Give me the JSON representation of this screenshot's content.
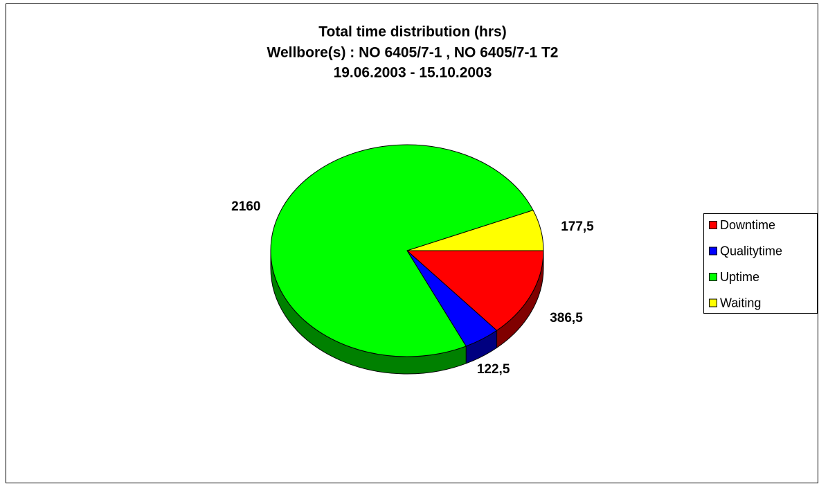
{
  "chart_data": {
    "type": "pie",
    "title": [
      "Total time distribution (hrs)",
      "Wellbore(s) : NO 6405/7-1 , NO 6405/7-1 T2",
      "19.06.2003 - 15.10.2003"
    ],
    "categories": [
      "Downtime",
      "Qualitytime",
      "Uptime",
      "Waiting"
    ],
    "values": [
      386.5,
      122.5,
      2160,
      177.5
    ],
    "value_labels": [
      "386,5",
      "122,5",
      "2160",
      "177,5"
    ],
    "colors": [
      "#ff0000",
      "#0000ff",
      "#00ff00",
      "#ffff00"
    ],
    "legend": "right"
  }
}
